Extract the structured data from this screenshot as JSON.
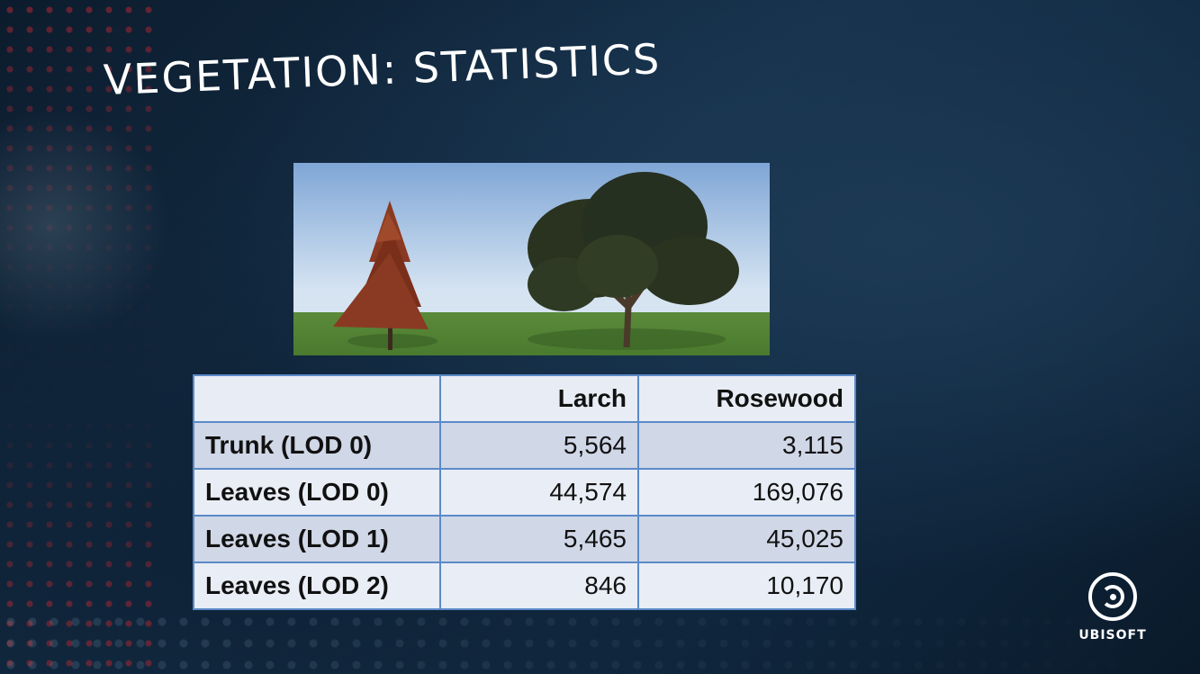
{
  "slide": {
    "title": "VEGETATION: STATISTICS"
  },
  "table": {
    "headers": [
      "",
      "Larch",
      "Rosewood"
    ],
    "rows": [
      {
        "label": "Trunk (LOD 0)",
        "larch": "5,564",
        "rosewood": "3,115"
      },
      {
        "label": "Leaves (LOD 0)",
        "larch": "44,574",
        "rosewood": "169,076"
      },
      {
        "label": "Leaves (LOD 1)",
        "larch": "5,465",
        "rosewood": "45,025"
      },
      {
        "label": "Leaves (LOD 2)",
        "larch": "846",
        "rosewood": "10,170"
      }
    ]
  },
  "logo": {
    "wordmark": "UBISOFT"
  },
  "colors": {
    "background": "#13293f",
    "table_border": "#5b8ac9",
    "row_dark": "#d0d7e7",
    "row_light": "#e9edf5",
    "larch_foliage": "#8a3a22",
    "rosewood_foliage": "#2a3320"
  }
}
